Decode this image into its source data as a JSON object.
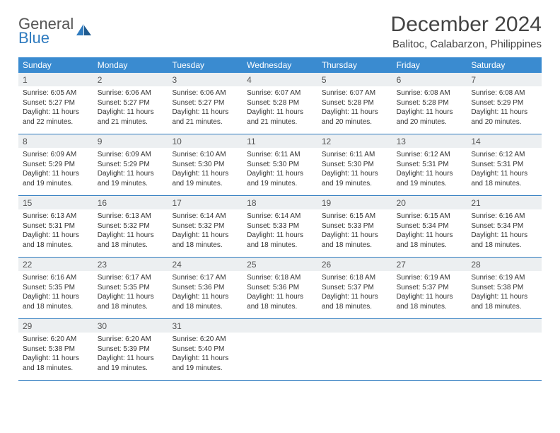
{
  "logo": {
    "general": "General",
    "blue": "Blue"
  },
  "title": "December 2024",
  "location": "Balitoc, Calabarzon, Philippines",
  "colors": {
    "header_bar": "#3a8bd0",
    "row_divider": "#2f7bbf",
    "daynum_bg": "#eceff1",
    "text": "#333333"
  },
  "day_labels": [
    "Sunday",
    "Monday",
    "Tuesday",
    "Wednesday",
    "Thursday",
    "Friday",
    "Saturday"
  ],
  "weeks": [
    [
      {
        "n": "1",
        "sr": "6:05 AM",
        "ss": "5:27 PM",
        "dl": "11 hours and 22 minutes."
      },
      {
        "n": "2",
        "sr": "6:06 AM",
        "ss": "5:27 PM",
        "dl": "11 hours and 21 minutes."
      },
      {
        "n": "3",
        "sr": "6:06 AM",
        "ss": "5:27 PM",
        "dl": "11 hours and 21 minutes."
      },
      {
        "n": "4",
        "sr": "6:07 AM",
        "ss": "5:28 PM",
        "dl": "11 hours and 21 minutes."
      },
      {
        "n": "5",
        "sr": "6:07 AM",
        "ss": "5:28 PM",
        "dl": "11 hours and 20 minutes."
      },
      {
        "n": "6",
        "sr": "6:08 AM",
        "ss": "5:28 PM",
        "dl": "11 hours and 20 minutes."
      },
      {
        "n": "7",
        "sr": "6:08 AM",
        "ss": "5:29 PM",
        "dl": "11 hours and 20 minutes."
      }
    ],
    [
      {
        "n": "8",
        "sr": "6:09 AM",
        "ss": "5:29 PM",
        "dl": "11 hours and 19 minutes."
      },
      {
        "n": "9",
        "sr": "6:09 AM",
        "ss": "5:29 PM",
        "dl": "11 hours and 19 minutes."
      },
      {
        "n": "10",
        "sr": "6:10 AM",
        "ss": "5:30 PM",
        "dl": "11 hours and 19 minutes."
      },
      {
        "n": "11",
        "sr": "6:11 AM",
        "ss": "5:30 PM",
        "dl": "11 hours and 19 minutes."
      },
      {
        "n": "12",
        "sr": "6:11 AM",
        "ss": "5:30 PM",
        "dl": "11 hours and 19 minutes."
      },
      {
        "n": "13",
        "sr": "6:12 AM",
        "ss": "5:31 PM",
        "dl": "11 hours and 19 minutes."
      },
      {
        "n": "14",
        "sr": "6:12 AM",
        "ss": "5:31 PM",
        "dl": "11 hours and 18 minutes."
      }
    ],
    [
      {
        "n": "15",
        "sr": "6:13 AM",
        "ss": "5:31 PM",
        "dl": "11 hours and 18 minutes."
      },
      {
        "n": "16",
        "sr": "6:13 AM",
        "ss": "5:32 PM",
        "dl": "11 hours and 18 minutes."
      },
      {
        "n": "17",
        "sr": "6:14 AM",
        "ss": "5:32 PM",
        "dl": "11 hours and 18 minutes."
      },
      {
        "n": "18",
        "sr": "6:14 AM",
        "ss": "5:33 PM",
        "dl": "11 hours and 18 minutes."
      },
      {
        "n": "19",
        "sr": "6:15 AM",
        "ss": "5:33 PM",
        "dl": "11 hours and 18 minutes."
      },
      {
        "n": "20",
        "sr": "6:15 AM",
        "ss": "5:34 PM",
        "dl": "11 hours and 18 minutes."
      },
      {
        "n": "21",
        "sr": "6:16 AM",
        "ss": "5:34 PM",
        "dl": "11 hours and 18 minutes."
      }
    ],
    [
      {
        "n": "22",
        "sr": "6:16 AM",
        "ss": "5:35 PM",
        "dl": "11 hours and 18 minutes."
      },
      {
        "n": "23",
        "sr": "6:17 AM",
        "ss": "5:35 PM",
        "dl": "11 hours and 18 minutes."
      },
      {
        "n": "24",
        "sr": "6:17 AM",
        "ss": "5:36 PM",
        "dl": "11 hours and 18 minutes."
      },
      {
        "n": "25",
        "sr": "6:18 AM",
        "ss": "5:36 PM",
        "dl": "11 hours and 18 minutes."
      },
      {
        "n": "26",
        "sr": "6:18 AM",
        "ss": "5:37 PM",
        "dl": "11 hours and 18 minutes."
      },
      {
        "n": "27",
        "sr": "6:19 AM",
        "ss": "5:37 PM",
        "dl": "11 hours and 18 minutes."
      },
      {
        "n": "28",
        "sr": "6:19 AM",
        "ss": "5:38 PM",
        "dl": "11 hours and 18 minutes."
      }
    ],
    [
      {
        "n": "29",
        "sr": "6:20 AM",
        "ss": "5:38 PM",
        "dl": "11 hours and 18 minutes."
      },
      {
        "n": "30",
        "sr": "6:20 AM",
        "ss": "5:39 PM",
        "dl": "11 hours and 19 minutes."
      },
      {
        "n": "31",
        "sr": "6:20 AM",
        "ss": "5:40 PM",
        "dl": "11 hours and 19 minutes."
      },
      {
        "n": "",
        "sr": "",
        "ss": "",
        "dl": ""
      },
      {
        "n": "",
        "sr": "",
        "ss": "",
        "dl": ""
      },
      {
        "n": "",
        "sr": "",
        "ss": "",
        "dl": ""
      },
      {
        "n": "",
        "sr": "",
        "ss": "",
        "dl": ""
      }
    ]
  ],
  "labels": {
    "sunrise": "Sunrise:",
    "sunset": "Sunset:",
    "daylight": "Daylight:"
  }
}
